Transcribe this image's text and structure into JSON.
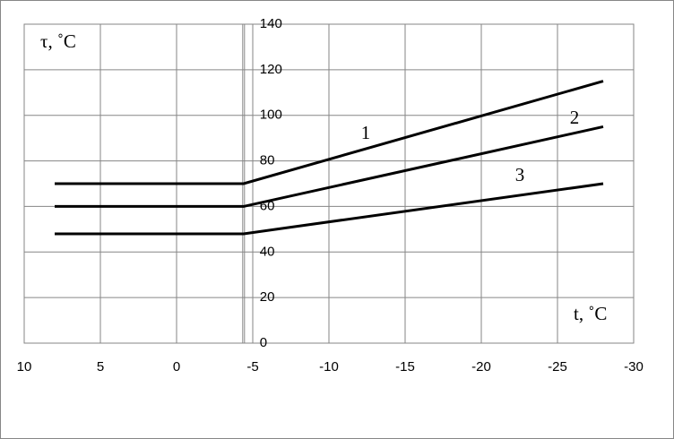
{
  "chart_data": {
    "type": "line",
    "x_label": "t, ˚C",
    "y_label": "τ, ˚C",
    "x": [
      8,
      -4.4,
      -28
    ],
    "series": [
      {
        "name": "1",
        "color": "#000000",
        "values": [
          70,
          70,
          115
        ]
      },
      {
        "name": "2",
        "color": "#000000",
        "values": [
          60,
          60,
          95
        ]
      },
      {
        "name": "3",
        "color": "#000000",
        "values": [
          48,
          48,
          70
        ]
      }
    ],
    "xlim": [
      10,
      -30
    ],
    "xticks": [
      10,
      5,
      0,
      -5,
      -10,
      -15,
      -20,
      -25,
      -30
    ],
    "ylim": [
      0,
      140
    ],
    "yticks": [
      0,
      20,
      40,
      60,
      80,
      100,
      120,
      140
    ],
    "grid": true
  }
}
